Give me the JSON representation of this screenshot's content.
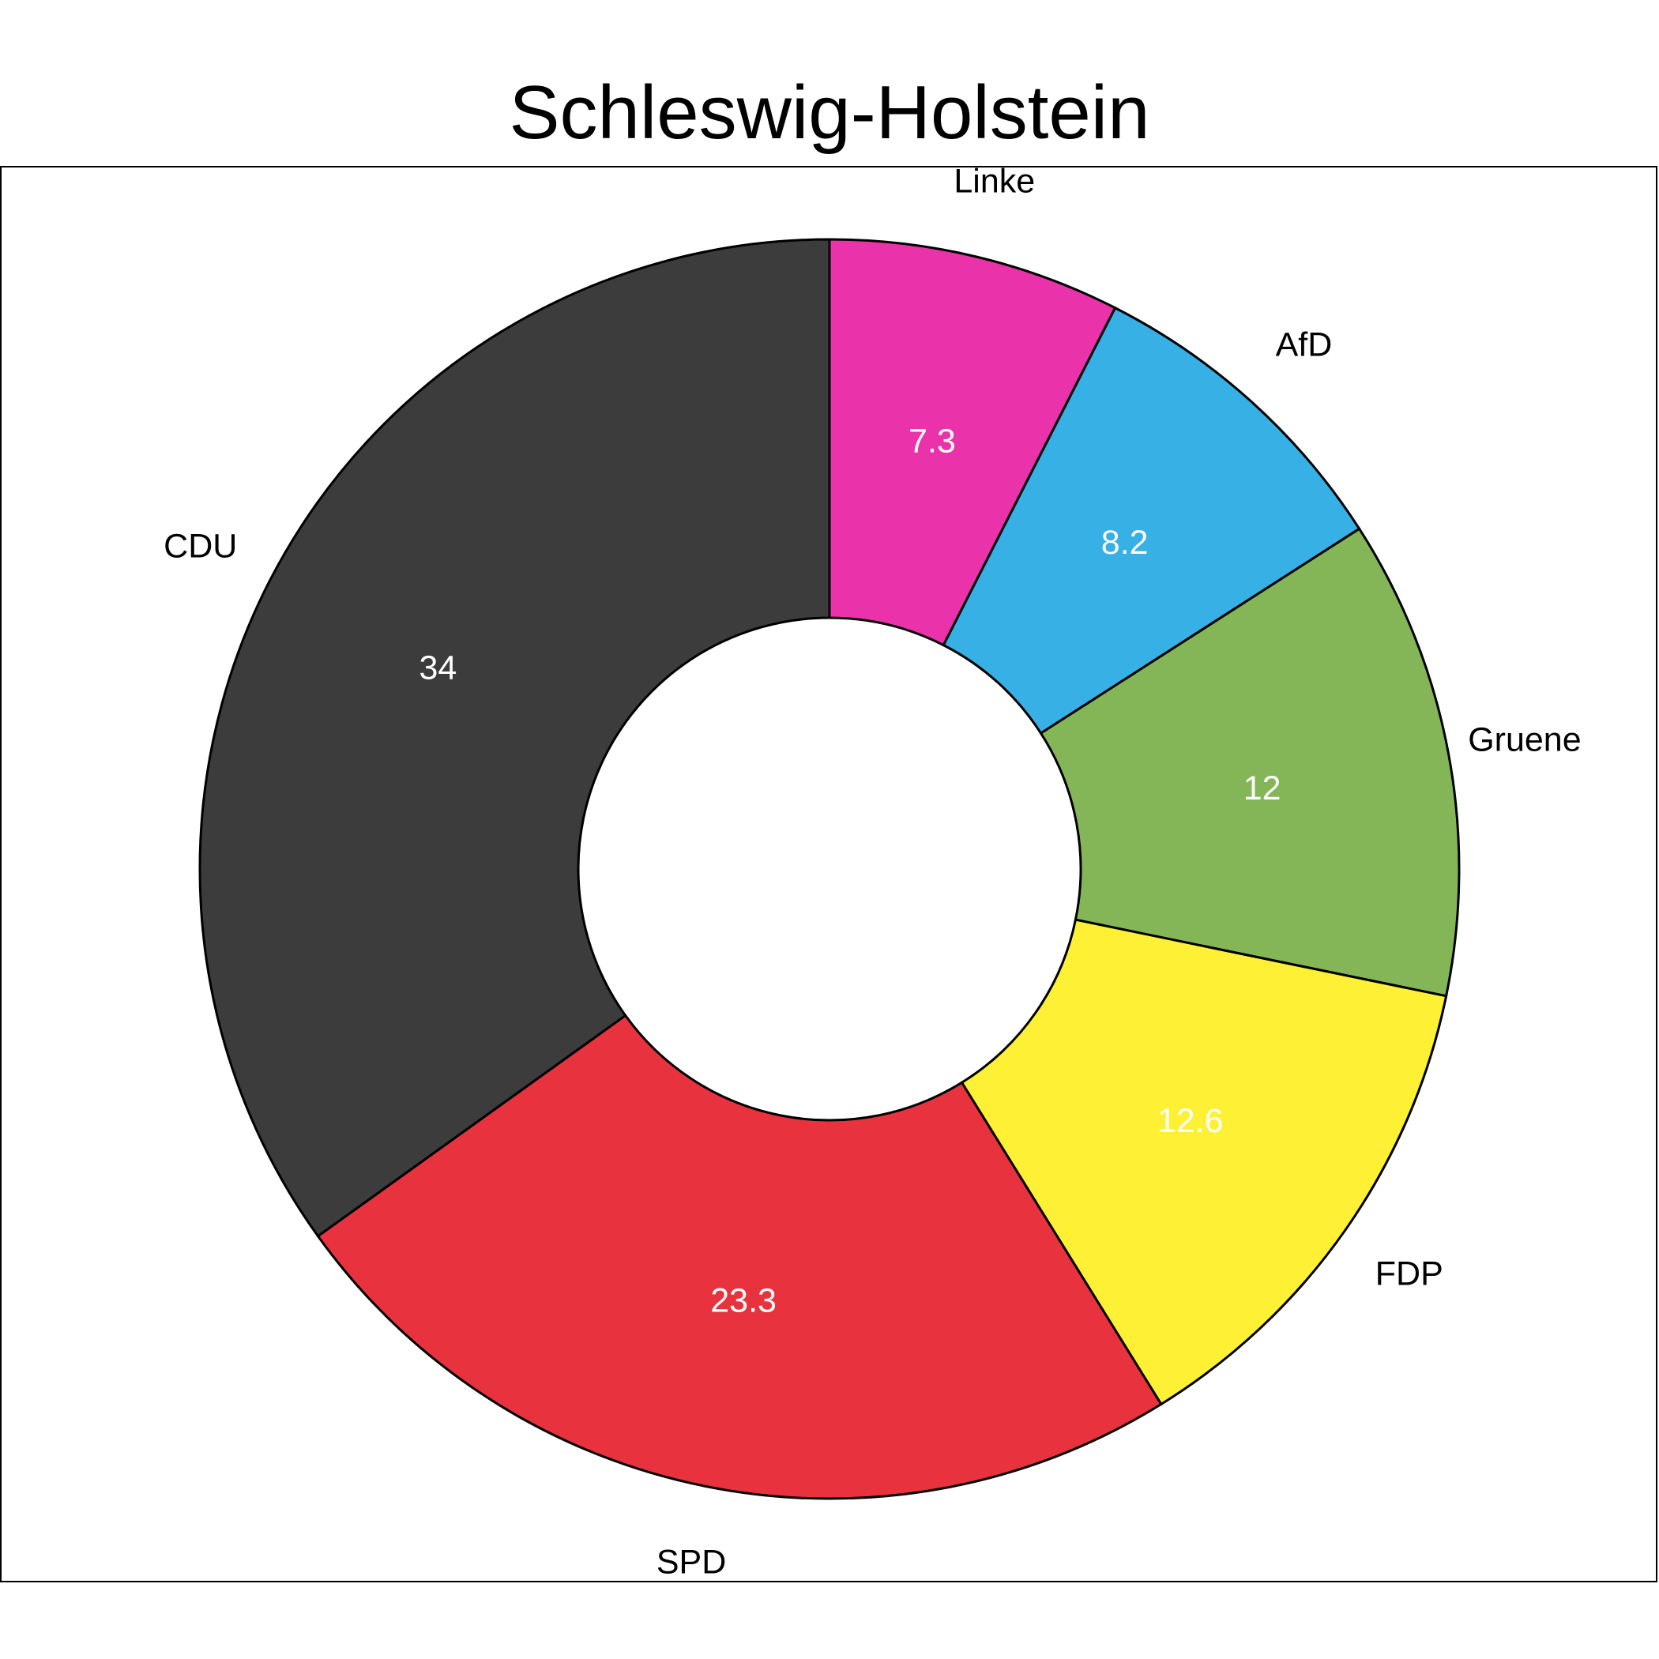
{
  "chart_data": {
    "type": "pie",
    "variant": "donut",
    "title": "Schleswig-Holstein",
    "slices": [
      {
        "label": "Linke",
        "value": 7.3,
        "value_label": "7.3",
        "color": "#EA33AA"
      },
      {
        "label": "AfD",
        "value": 8.2,
        "value_label": "8.2",
        "color": "#36B0E5"
      },
      {
        "label": "Gruene",
        "value": 12,
        "value_label": "12",
        "color": "#84B658"
      },
      {
        "label": "FDP",
        "value": 12.6,
        "value_label": "12.6",
        "color": "#FEF035"
      },
      {
        "label": "SPD",
        "value": 23.3,
        "value_label": "23.3",
        "color": "#E8333F"
      },
      {
        "label": "CDU",
        "value": 34,
        "value_label": "34",
        "color": "#3C3C3C"
      }
    ],
    "direction": "clockwise from top",
    "legend": "none",
    "border_color": "#000000"
  }
}
